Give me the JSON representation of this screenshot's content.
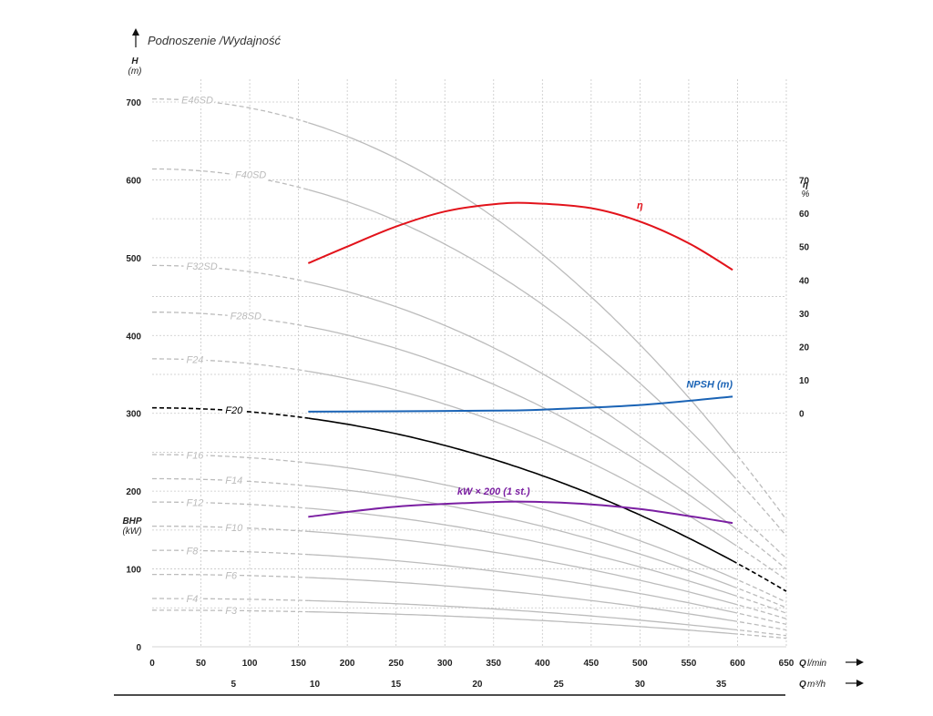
{
  "chart_data": {
    "type": "line",
    "title": "Podnoszenie /Wydajność",
    "left_axis": {
      "label": "H",
      "unit": "(m)",
      "ticks": [
        0,
        100,
        200,
        300,
        400,
        500,
        600,
        700
      ],
      "ylim": [
        0,
        700
      ]
    },
    "bhp_axis": {
      "label": "BHP",
      "unit": "(kW)"
    },
    "right_axis": {
      "label": "η",
      "unit": "%",
      "ticks": [
        0,
        10,
        20,
        30,
        40,
        50,
        60,
        70
      ],
      "ylim": [
        0,
        70
      ]
    },
    "x_axis_lmin": {
      "label": "Q",
      "unit": "l/min",
      "ticks": [
        0,
        50,
        100,
        150,
        200,
        250,
        300,
        350,
        400,
        450,
        500,
        550,
        600,
        650
      ],
      "xlim": [
        0,
        650
      ]
    },
    "x_axis_m3h": {
      "label": "Q",
      "unit": "m³/h",
      "ticks": [
        5,
        10,
        15,
        20,
        25,
        30,
        35
      ]
    },
    "grid": true,
    "pump_curves": [
      {
        "name": "E46SD",
        "h0": 704,
        "label_q": 30
      },
      {
        "name": "F40SD",
        "h0": 614,
        "label_q": 85
      },
      {
        "name": "F32SD",
        "h0": 490,
        "label_q": 35
      },
      {
        "name": "F28SD",
        "h0": 430,
        "label_q": 80
      },
      {
        "name": "F24",
        "h0": 370,
        "label_q": 35
      },
      {
        "name": "F20",
        "h0": 307,
        "label_q": 75,
        "highlight": true
      },
      {
        "name": "F16",
        "h0": 247,
        "label_q": 35
      },
      {
        "name": "F14",
        "h0": 216,
        "label_q": 75
      },
      {
        "name": "F12",
        "h0": 186,
        "label_q": 35
      },
      {
        "name": "F10",
        "h0": 155,
        "label_q": 75
      },
      {
        "name": "F8",
        "h0": 124,
        "label_q": 35
      },
      {
        "name": "F6",
        "h0": 93,
        "label_q": 75
      },
      {
        "name": "F4",
        "h0": 62,
        "label_q": 35
      },
      {
        "name": "F3",
        "h0": 47,
        "label_q": 75
      }
    ],
    "series": [
      {
        "name": "η",
        "axis": "right",
        "color": "#e2131b",
        "x": [
          160,
          200,
          250,
          300,
          350,
          390,
          450,
          500,
          550,
          595
        ],
        "y": [
          45,
          50,
          56,
          60.5,
          62.7,
          63,
          61.5,
          57.5,
          51,
          43
        ]
      },
      {
        "name": "NPSH (m)",
        "axis": "right",
        "color": "#1a63b5",
        "x": [
          160,
          250,
          350,
          400,
          500,
          595
        ],
        "y": [
          0.5,
          0.6,
          0.8,
          1.1,
          2.5,
          5
        ]
      },
      {
        "name": "kW × 200 (1 st.)",
        "axis": "left",
        "color": "#7b1fa2",
        "x": [
          160,
          250,
          350,
          400,
          450,
          500,
          550,
          595
        ],
        "y": [
          167,
          180,
          186,
          186,
          183,
          177,
          168,
          159
        ]
      }
    ]
  }
}
